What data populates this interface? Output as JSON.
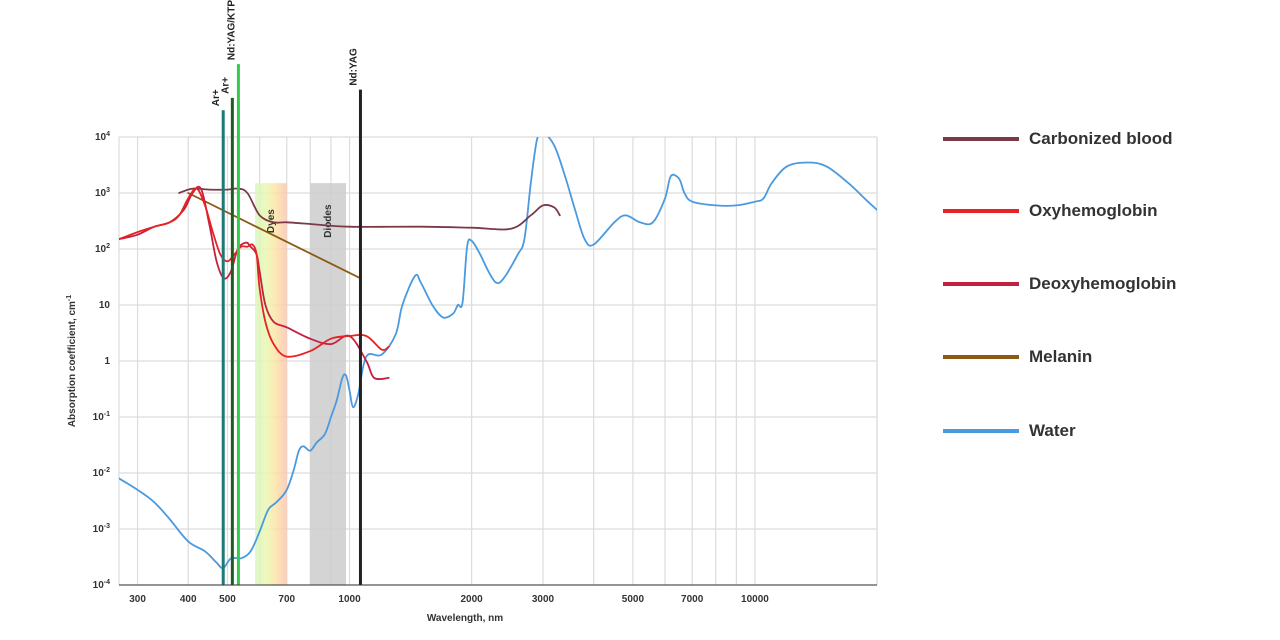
{
  "chart_data": {
    "type": "line",
    "xlabel": "Wavelength, nm",
    "ylabel": "Absorption coefficient, cm",
    "ylabel_sup": "-1",
    "x_scale": "log",
    "y_scale": "log",
    "xlim": [
      270,
      20000
    ],
    "ylim": [
      0.0001,
      10000
    ],
    "grid": true,
    "legend_position": "right",
    "x_ticks": [
      {
        "value": 300,
        "label": "300"
      },
      {
        "value": 400,
        "label": "400"
      },
      {
        "value": 500,
        "label": "500"
      },
      {
        "value": 700,
        "label": "700"
      },
      {
        "value": 1000,
        "label": "1000"
      },
      {
        "value": 2000,
        "label": "2000"
      },
      {
        "value": 3000,
        "label": "3000"
      },
      {
        "value": 5000,
        "label": "5000"
      },
      {
        "value": 7000,
        "label": "7000"
      },
      {
        "value": 10000,
        "label": "10000"
      }
    ],
    "x_gridlines": [
      300,
      400,
      500,
      600,
      700,
      800,
      900,
      1000,
      2000,
      3000,
      4000,
      5000,
      6000,
      7000,
      8000,
      9000,
      10000,
      20000
    ],
    "y_ticks": [
      {
        "value": 10000,
        "base": "10",
        "sup": "4"
      },
      {
        "value": 1000,
        "base": "10",
        "sup": "3"
      },
      {
        "value": 100,
        "base": "10",
        "sup": "2"
      },
      {
        "value": 10,
        "base": "10",
        "sup": ""
      },
      {
        "value": 1,
        "base": "1",
        "sup": ""
      },
      {
        "value": 0.1,
        "base": "10",
        "sup": "-1"
      },
      {
        "value": 0.01,
        "base": "10",
        "sup": "-2"
      },
      {
        "value": 0.001,
        "base": "10",
        "sup": "-3"
      },
      {
        "value": 0.0001,
        "base": "10",
        "sup": "-4"
      }
    ],
    "bands": [
      {
        "label": "Dyes",
        "x": [
          585,
          700
        ],
        "y_top": 1500,
        "style": "rainbow"
      },
      {
        "label": "Diodes",
        "x": [
          800,
          980
        ],
        "y_top": 1500,
        "color": "#cccccc"
      }
    ],
    "lasers": [
      {
        "label": "Ar+",
        "x": 488,
        "y_top": 30000,
        "color": "#1f7a75"
      },
      {
        "label": "Ar+",
        "x": 514,
        "y_top": 50000,
        "color": "#1e5c20"
      },
      {
        "label": "Nd:YAG/KTP",
        "x": 532,
        "y_top": 200000,
        "color": "#33cc4a"
      },
      {
        "label": "Nd:YAG",
        "x": 1064,
        "y_top": 70000,
        "color": "#222222"
      }
    ],
    "series": [
      {
        "name": "Water",
        "color": "#4a9ae0",
        "points": [
          [
            270,
            0.008
          ],
          [
            300,
            0.005
          ],
          [
            330,
            0.003
          ],
          [
            360,
            0.0015
          ],
          [
            400,
            0.0006
          ],
          [
            440,
            0.0004
          ],
          [
            470,
            0.00025
          ],
          [
            488,
            0.0002
          ],
          [
            510,
            0.0003
          ],
          [
            540,
            0.0003
          ],
          [
            570,
            0.0004
          ],
          [
            600,
            0.0009
          ],
          [
            630,
            0.0022
          ],
          [
            660,
            0.003
          ],
          [
            700,
            0.005
          ],
          [
            730,
            0.012
          ],
          [
            750,
            0.025
          ],
          [
            770,
            0.03
          ],
          [
            800,
            0.025
          ],
          [
            830,
            0.035
          ],
          [
            870,
            0.05
          ],
          [
            900,
            0.1
          ],
          [
            930,
            0.2
          ],
          [
            960,
            0.5
          ],
          [
            980,
            0.55
          ],
          [
            1000,
            0.3
          ],
          [
            1020,
            0.15
          ],
          [
            1050,
            0.25
          ],
          [
            1100,
            1.2
          ],
          [
            1200,
            1.3
          ],
          [
            1300,
            3
          ],
          [
            1350,
            10
          ],
          [
            1450,
            33
          ],
          [
            1500,
            25
          ],
          [
            1600,
            10
          ],
          [
            1700,
            6
          ],
          [
            1800,
            7
          ],
          [
            1850,
            10
          ],
          [
            1900,
            11
          ],
          [
            1950,
            110
          ],
          [
            2000,
            140
          ],
          [
            2100,
            80
          ],
          [
            2200,
            40
          ],
          [
            2300,
            25
          ],
          [
            2400,
            30
          ],
          [
            2600,
            80
          ],
          [
            2700,
            150
          ],
          [
            2800,
            1500
          ],
          [
            2900,
            9000
          ],
          [
            3000,
            12000
          ],
          [
            3200,
            7000
          ],
          [
            3400,
            2000
          ],
          [
            3600,
            500
          ],
          [
            3800,
            150
          ],
          [
            4000,
            120
          ],
          [
            4500,
            300
          ],
          [
            4800,
            400
          ],
          [
            5200,
            300
          ],
          [
            5600,
            300
          ],
          [
            6000,
            800
          ],
          [
            6200,
            2000
          ],
          [
            6500,
            1800
          ],
          [
            6700,
            1000
          ],
          [
            7000,
            700
          ],
          [
            8000,
            600
          ],
          [
            9000,
            600
          ],
          [
            10000,
            700
          ],
          [
            10500,
            800
          ],
          [
            11000,
            1500
          ],
          [
            12000,
            3000
          ],
          [
            13500,
            3500
          ],
          [
            15000,
            3000
          ],
          [
            17000,
            1500
          ],
          [
            19000,
            700
          ],
          [
            20000,
            500
          ]
        ]
      },
      {
        "name": "Carbonized blood",
        "color": "#7a3a48",
        "points": [
          [
            380,
            1000
          ],
          [
            410,
            1200
          ],
          [
            450,
            1150
          ],
          [
            500,
            1150
          ],
          [
            530,
            1200
          ],
          [
            560,
            1000
          ],
          [
            600,
            400
          ],
          [
            650,
            300
          ],
          [
            700,
            300
          ],
          [
            800,
            280
          ],
          [
            1000,
            250
          ],
          [
            1500,
            250
          ],
          [
            2000,
            240
          ],
          [
            2500,
            230
          ],
          [
            2800,
            400
          ],
          [
            3000,
            600
          ],
          [
            3200,
            550
          ],
          [
            3300,
            400
          ]
        ]
      },
      {
        "name": "Oxyhemoglobin",
        "color": "#e62222",
        "points": [
          [
            270,
            150
          ],
          [
            300,
            200
          ],
          [
            330,
            250
          ],
          [
            360,
            300
          ],
          [
            380,
            400
          ],
          [
            400,
            800
          ],
          [
            420,
            1200
          ],
          [
            440,
            600
          ],
          [
            460,
            200
          ],
          [
            480,
            80
          ],
          [
            500,
            60
          ],
          [
            520,
            80
          ],
          [
            540,
            110
          ],
          [
            560,
            110
          ],
          [
            576,
            120
          ],
          [
            590,
            80
          ],
          [
            600,
            20
          ],
          [
            620,
            5
          ],
          [
            650,
            2
          ],
          [
            700,
            1.2
          ],
          [
            800,
            1.5
          ],
          [
            900,
            2.5
          ],
          [
            1000,
            2.8
          ],
          [
            1100,
            2.8
          ],
          [
            1200,
            1.6
          ],
          [
            1250,
            1.8
          ]
        ]
      },
      {
        "name": "Deoxyhemoglobin",
        "color": "#c52040",
        "points": [
          [
            270,
            150
          ],
          [
            300,
            180
          ],
          [
            330,
            250
          ],
          [
            360,
            300
          ],
          [
            390,
            500
          ],
          [
            410,
            1000
          ],
          [
            430,
            1200
          ],
          [
            450,
            300
          ],
          [
            470,
            60
          ],
          [
            490,
            30
          ],
          [
            510,
            40
          ],
          [
            530,
            100
          ],
          [
            555,
            130
          ],
          [
            570,
            110
          ],
          [
            590,
            80
          ],
          [
            600,
            40
          ],
          [
            620,
            10
          ],
          [
            650,
            5
          ],
          [
            700,
            4
          ],
          [
            800,
            2.5
          ],
          [
            900,
            2
          ],
          [
            1000,
            2.8
          ],
          [
            1100,
            1
          ],
          [
            1150,
            0.5
          ],
          [
            1250,
            0.5
          ]
        ]
      },
      {
        "name": "Melanin",
        "color": "#8b5a14",
        "points": [
          [
            400,
            1000
          ],
          [
            1064,
            30
          ]
        ]
      }
    ],
    "legend_order": [
      "Carbonized blood",
      "Oxyhemoglobin",
      "Deoxyhemoglobin",
      "Melanin",
      "Water"
    ]
  }
}
